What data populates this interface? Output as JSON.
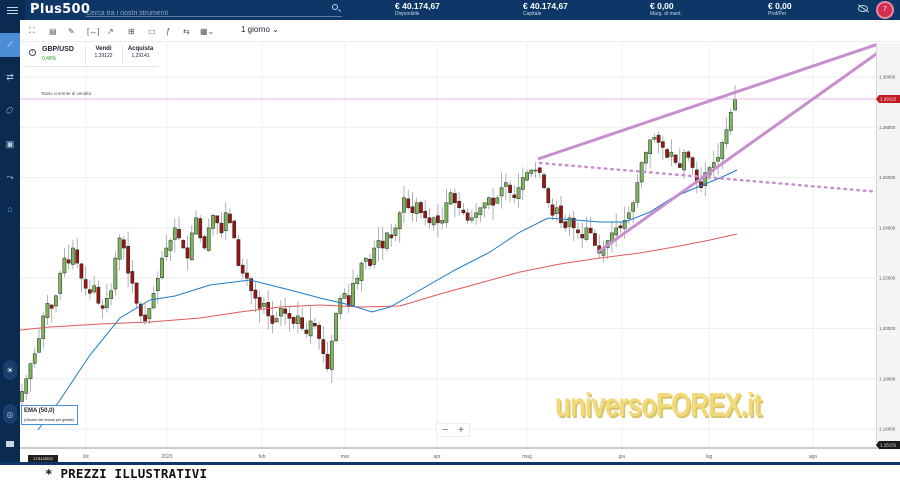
{
  "header": {
    "logo": "Plus500",
    "search_placeholder": "Cerca tra i nostri strumenti",
    "stats": [
      {
        "value": "€ 40.174,67",
        "label": "Disponibile"
      },
      {
        "value": "€ 40.174,67",
        "label": "Capitale"
      },
      {
        "value": "€ 0,00",
        "label": "Marg. di mant."
      },
      {
        "value": "€ 0,00",
        "label": "Prof/Per"
      }
    ],
    "avatar_initial": "7"
  },
  "sidebar": {
    "items": [
      {
        "icon": "chart-icon",
        "glyph": "📈"
      },
      {
        "icon": "exchange-icon",
        "glyph": "⇄"
      },
      {
        "icon": "tag-icon",
        "glyph": "⌂"
      },
      {
        "icon": "briefcase-icon",
        "glyph": "▣"
      },
      {
        "icon": "trend-icon",
        "glyph": "〽"
      },
      {
        "icon": "bank-icon",
        "glyph": "🏛"
      }
    ],
    "bottom": [
      {
        "icon": "light-mode-icon",
        "glyph": "☀"
      },
      {
        "icon": "fingerprint-icon",
        "glyph": "◎"
      },
      {
        "icon": "chat-icon",
        "glyph": "▭"
      }
    ]
  },
  "toolbar": {
    "tools": [
      {
        "name": "fullscreen-icon",
        "glyph": "⛶"
      },
      {
        "name": "chart-type-icon",
        "glyph": "▤"
      },
      {
        "name": "draw-icon",
        "glyph": "✎"
      },
      {
        "name": "measure-icon",
        "glyph": "⟷"
      },
      {
        "name": "indicator-icon",
        "glyph": "↗"
      },
      {
        "name": "layout-icon",
        "glyph": "⊞"
      },
      {
        "name": "save-icon",
        "glyph": "🖫"
      },
      {
        "name": "fx-icon",
        "glyph": "ƒ"
      },
      {
        "name": "compare-icon",
        "glyph": "⇆"
      },
      {
        "name": "calendar-icon",
        "glyph": "📅"
      }
    ],
    "period": "1 giorno"
  },
  "instrument": {
    "symbol": "GBP/USD",
    "change": "0,48%",
    "sell_label": "Vendi",
    "sell_price": "1,29122",
    "buy_label": "Acquista",
    "buy_price": "1,29141"
  },
  "chart_overlay": {
    "current_rate_label": "Tasso corrente di vendita",
    "current_price_tag": "1.29122",
    "bottom_price_tag": "1.15131",
    "ema_title": "EMA (50,0)",
    "ema_subtitle": "(cliccare del mouse per gestire)",
    "date_badge": "17/11/2022",
    "watermark": "universoFOREX.it",
    "zoom_out": "−",
    "zoom_in": "+"
  },
  "footer_text": "* PREZZI ILLUSTRATIVI",
  "colors": {
    "header_bg": "#0e3768",
    "sidebar_bg": "#0b2a50",
    "active": "#4d8ed8",
    "bull": "#7fb45e",
    "bear": "#9a1414",
    "ema50": "#1f7bc8",
    "ema200": "#e05a5a",
    "trendline": "#c88fcf",
    "price_tag": "#c01b24"
  },
  "chart_data": {
    "type": "candlestick",
    "title": "GBP/USD 1 giorno",
    "y_ticks": [
      "1.30000",
      "1.28000",
      "1.26000",
      "1.24000",
      "1.22000",
      "1.20000",
      "1.18000",
      "1.16000"
    ],
    "x_ticks": [
      "dic",
      "2023",
      "feb",
      "mar",
      "apr",
      "mag",
      "giu",
      "lug",
      "ago"
    ],
    "ylim": [
      1.148,
      1.31
    ],
    "current_price": 1.29122,
    "closes": [
      1.175,
      1.18,
      1.186,
      1.19,
      1.196,
      1.205,
      1.21,
      1.208,
      1.213,
      1.222,
      1.228,
      1.226,
      1.232,
      1.226,
      1.22,
      1.216,
      1.214,
      1.217,
      1.21,
      1.208,
      1.212,
      1.215,
      1.228,
      1.236,
      1.232,
      1.222,
      1.218,
      1.21,
      1.205,
      1.203,
      1.208,
      1.214,
      1.22,
      1.228,
      1.232,
      1.235,
      1.24,
      1.236,
      1.232,
      1.228,
      1.238,
      1.244,
      1.236,
      1.232,
      1.24,
      1.245,
      1.242,
      1.238,
      1.246,
      1.242,
      1.236,
      1.225,
      1.222,
      1.22,
      1.215,
      1.212,
      1.208,
      1.21,
      1.205,
      1.202,
      1.204,
      1.208,
      1.206,
      1.204,
      1.202,
      1.205,
      1.2,
      1.198,
      1.203,
      1.201,
      1.196,
      1.19,
      1.184,
      1.195,
      1.206,
      1.212,
      1.214,
      1.209,
      1.218,
      1.22,
      1.226,
      1.228,
      1.225,
      1.232,
      1.235,
      1.232,
      1.238,
      1.236,
      1.24,
      1.246,
      1.252,
      1.248,
      1.246,
      1.25,
      1.246,
      1.244,
      1.242,
      1.244,
      1.242,
      1.243,
      1.25,
      1.254,
      1.25,
      1.248,
      1.246,
      1.243,
      1.244,
      1.246,
      1.248,
      1.25,
      1.252,
      1.249,
      1.252,
      1.256,
      1.258,
      1.254,
      1.252,
      1.256,
      1.26,
      1.262,
      1.263,
      1.263,
      1.262,
      1.256,
      1.25,
      1.245,
      1.248,
      1.242,
      1.24,
      1.244,
      1.24,
      1.238,
      1.236,
      1.24,
      1.238,
      1.233,
      1.23,
      1.232,
      1.235,
      1.238,
      1.24,
      1.24,
      1.243,
      1.246,
      1.25,
      1.258,
      1.266,
      1.27,
      1.275,
      1.276,
      1.274,
      1.272,
      1.268,
      1.27,
      1.266,
      1.264,
      1.27,
      1.268,
      1.264,
      1.258,
      1.256,
      1.262,
      1.264,
      1.266,
      1.268,
      1.274,
      1.279,
      1.286,
      1.291
    ],
    "series": [
      {
        "name": "EMA 50",
        "color": "#1f7bc8"
      },
      {
        "name": "EMA 200",
        "color": "#e05a5a"
      }
    ],
    "annotations": [
      "rising wedge upper trendline",
      "rising wedge lower trendline",
      "dotted support line",
      "Tasso corrente di vendita 1.29122"
    ]
  }
}
